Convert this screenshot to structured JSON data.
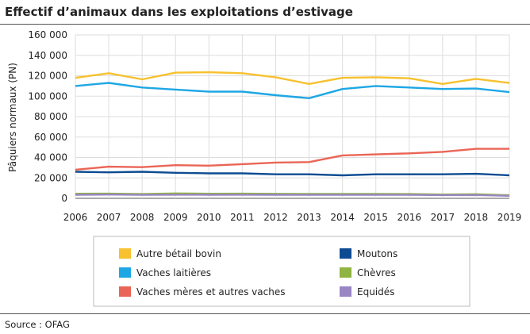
{
  "header": {
    "title": "Effectif d’animaux dans les exploitations d’estivage"
  },
  "footer": {
    "source": "Source : OFAG"
  },
  "chart_data": {
    "type": "line",
    "title": "Effectif d’animaux dans les exploitations d’estivage",
    "xlabel": "",
    "ylabel": "Pâquiers normaux (PN)",
    "x": [
      "2006",
      "2007",
      "2008",
      "2009",
      "2010",
      "2011",
      "2012",
      "2013",
      "2014",
      "2015",
      "2016",
      "2017",
      "2018",
      "2019"
    ],
    "ylim": [
      0,
      160000
    ],
    "yticks": [
      0,
      20000,
      40000,
      60000,
      80000,
      100000,
      120000,
      140000,
      160000
    ],
    "ytick_labels": [
      "0",
      "20 000",
      "40 000",
      "60 000",
      "80 000",
      "100 000",
      "120 000",
      "140 000",
      "160 000"
    ],
    "grid": true,
    "legend_position": "bottom",
    "series": [
      {
        "name": "Autre bétail bovin",
        "color": "#f7c12f",
        "values": [
          118000,
          122500,
          116500,
          123000,
          123500,
          122500,
          118500,
          112000,
          118000,
          118500,
          117500,
          112000,
          117000,
          113000
        ]
      },
      {
        "name": "Vaches laitières",
        "color": "#1ea7e4",
        "values": [
          110000,
          113000,
          108500,
          106500,
          104500,
          104500,
          101000,
          98000,
          107000,
          110000,
          108500,
          107000,
          107500,
          104000
        ]
      },
      {
        "name": "Vaches mères et autres vaches",
        "color": "#ea6555",
        "values": [
          28000,
          31000,
          30500,
          32500,
          32000,
          33500,
          35000,
          35500,
          42000,
          43000,
          44000,
          45500,
          48500,
          48500
        ]
      },
      {
        "name": "Moutons",
        "color": "#0e4c92",
        "values": [
          26000,
          25500,
          26000,
          25000,
          24500,
          24500,
          23500,
          23500,
          22500,
          23500,
          23500,
          23500,
          24000,
          22500
        ]
      },
      {
        "name": "Chèvres",
        "color": "#8fb443",
        "values": [
          4500,
          4600,
          4200,
          4800,
          4500,
          4600,
          4400,
          4300,
          4300,
          4300,
          4200,
          3700,
          4000,
          3000
        ]
      },
      {
        "name": "Equidés",
        "color": "#9a86c4",
        "values": [
          3500,
          3700,
          3400,
          3600,
          3500,
          3600,
          3500,
          3400,
          3400,
          3400,
          3400,
          3200,
          3300,
          2500
        ]
      }
    ]
  }
}
